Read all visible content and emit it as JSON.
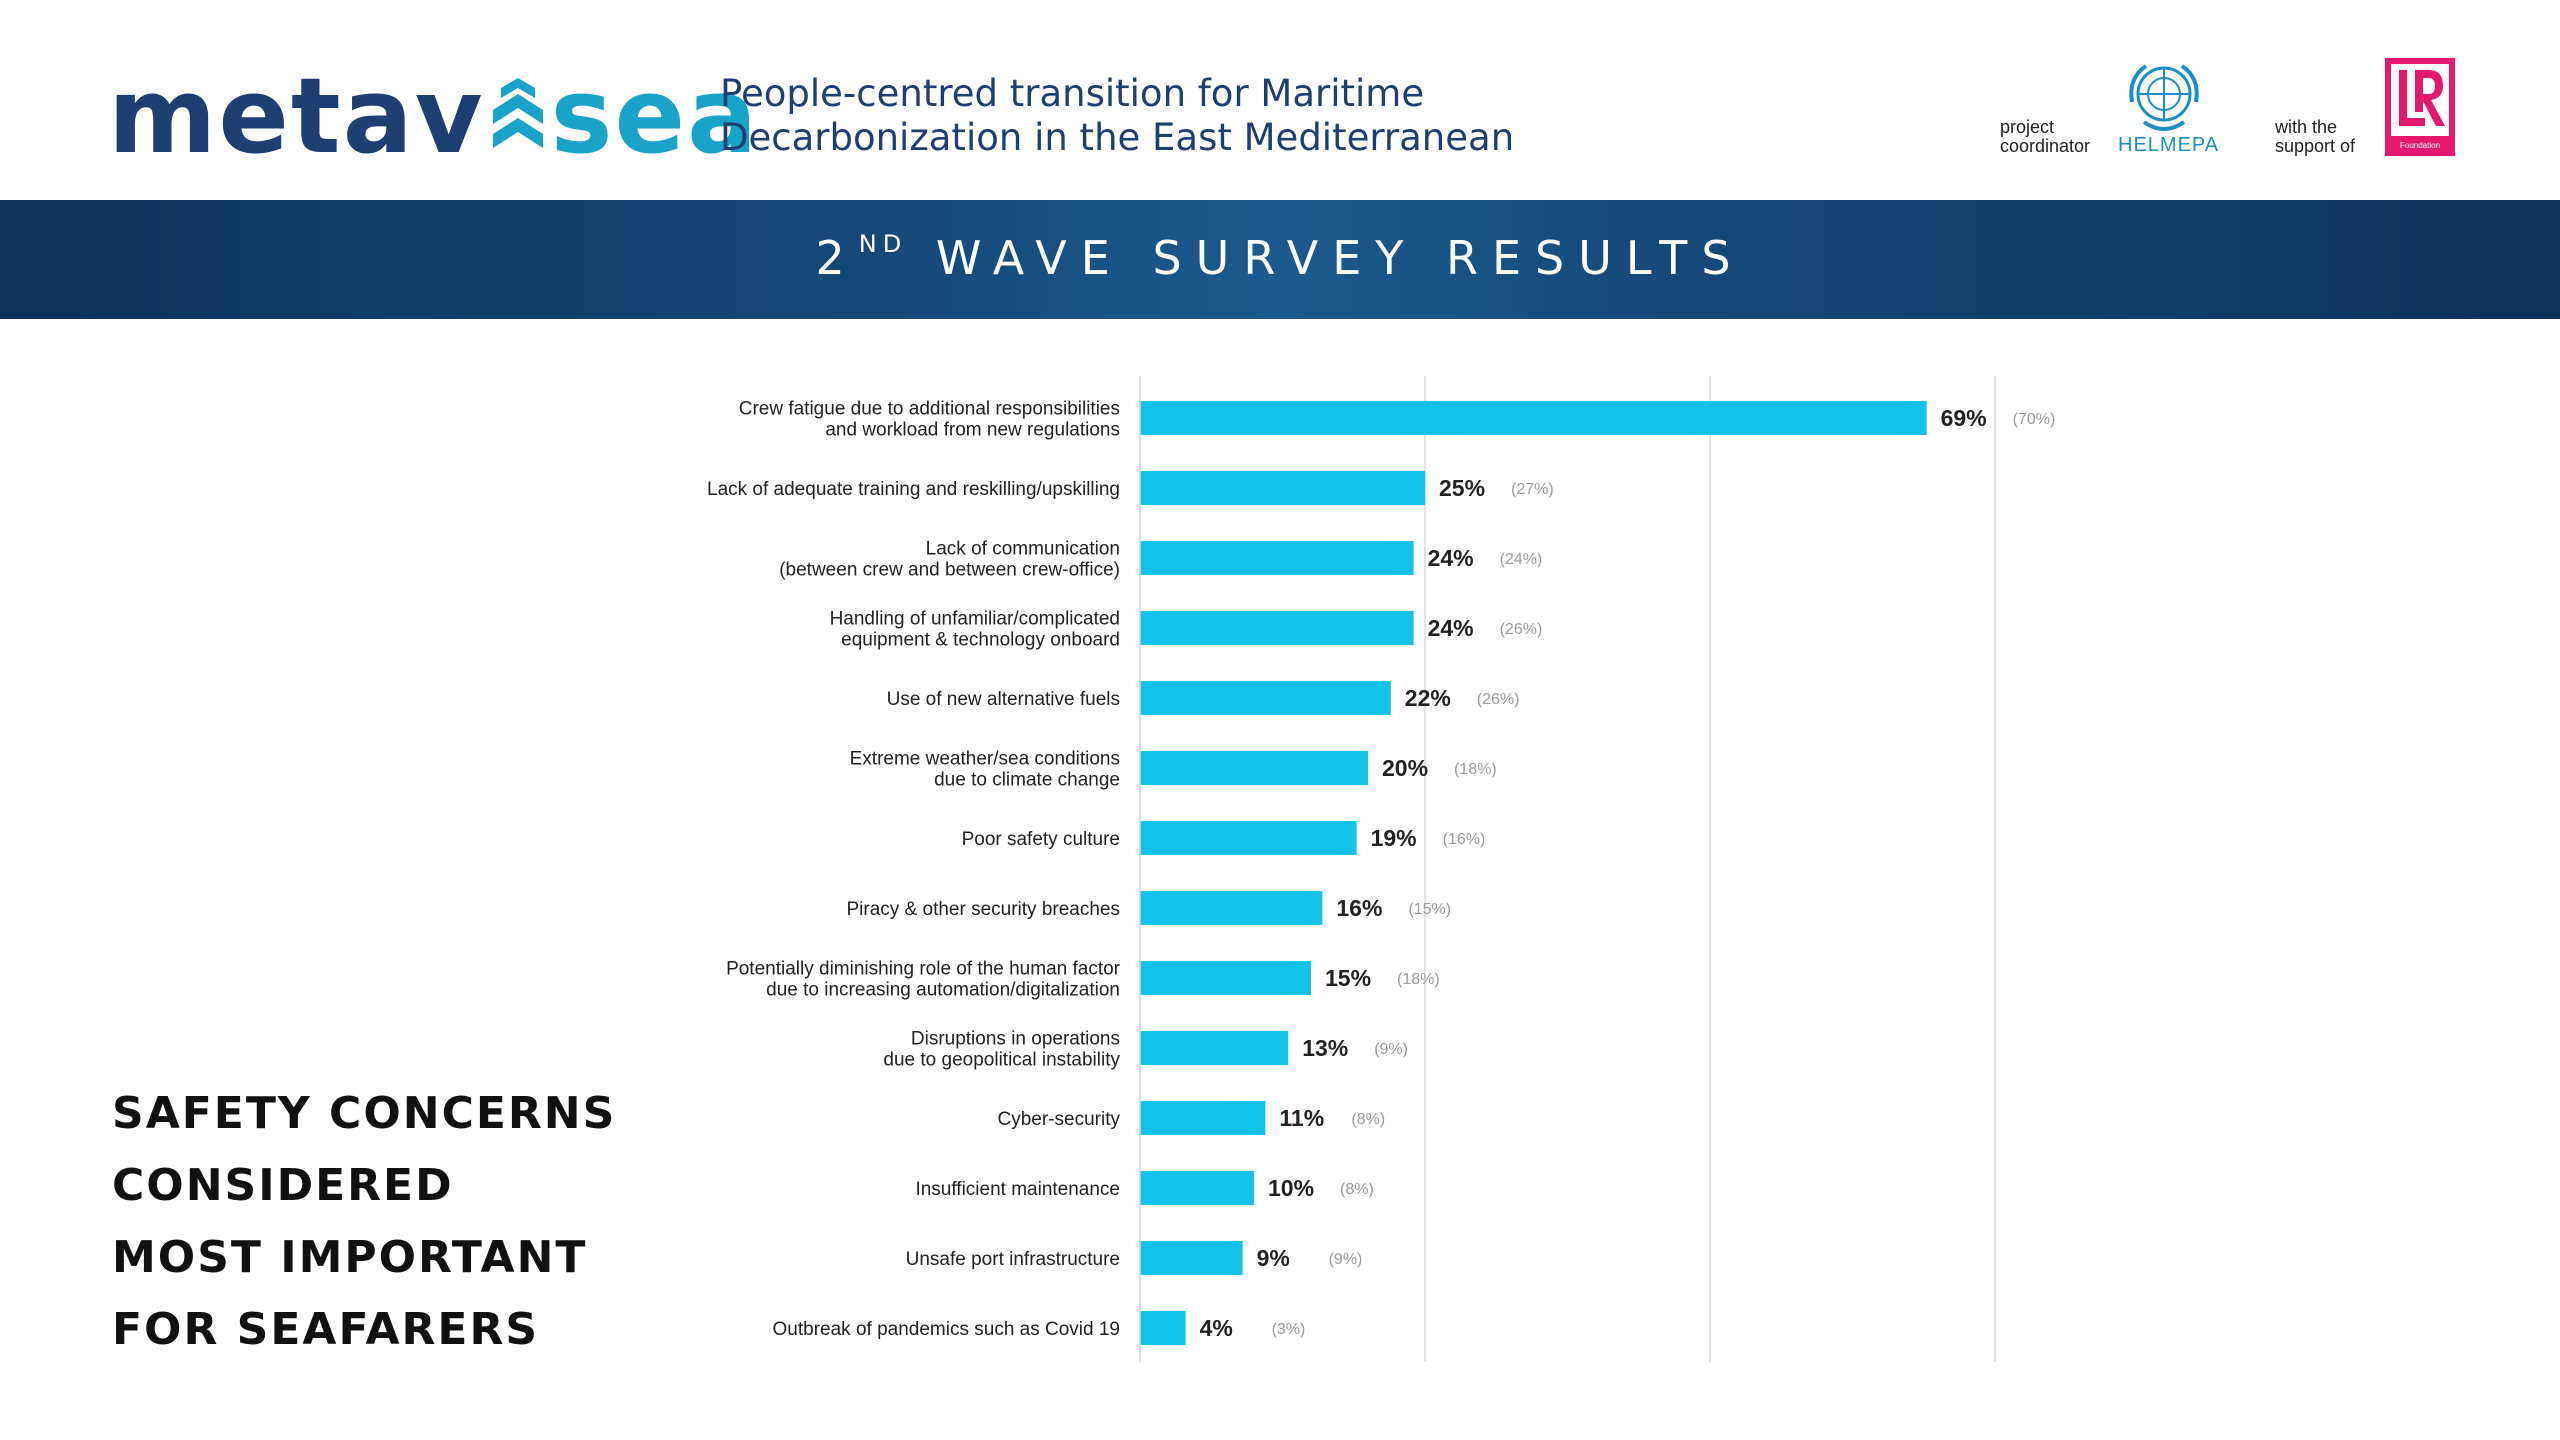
{
  "header": {
    "logo": {
      "part1": "metav",
      "part2": "sea"
    },
    "tagline_line1": "People-centred transition for Maritime",
    "tagline_line2": "Decarbonization in the East Mediterranean",
    "coordinator_line1": "project",
    "coordinator_line2": "coordinator",
    "coordinator_name": "HELMEPA",
    "support_line1": "with the",
    "support_line2": "support of",
    "lr_foundation": "Foundation"
  },
  "banner": {
    "prefix": "2",
    "superscript": "ND",
    "title": "WAVE SURVEY RESULTS"
  },
  "side_heading": [
    "SAFETY CONCERNS",
    "CONSIDERED",
    "MOST IMPORTANT",
    "FOR SEAFARERS"
  ],
  "colors": {
    "bar": "#12c3ea",
    "grid": "#d9d9d9",
    "value_text": "#222222",
    "prev_text": "#9a9a9a",
    "brand_dark": "#1f3e72",
    "brand_light": "#19a3c9"
  },
  "chart_data": {
    "type": "bar",
    "orientation": "horizontal",
    "xlim": [
      0,
      90
    ],
    "grid": true,
    "categories": [
      [
        "Crew fatigue due to additional responsibilities",
        "and workload from new regulations"
      ],
      [
        "Lack of adequate training and reskilling/upskilling"
      ],
      [
        "Lack of communication",
        "(between crew and between crew-office)"
      ],
      [
        "Handling of unfamiliar/complicated",
        "equipment & technology onboard"
      ],
      [
        "Use of new alternative fuels"
      ],
      [
        "Extreme weather/sea conditions",
        "due to climate change"
      ],
      [
        "Poor safety culture"
      ],
      [
        "Piracy & other security breaches"
      ],
      [
        "Potentially diminishing role of the human factor",
        "due to increasing automation/digitalization"
      ],
      [
        "Disruptions in operations",
        "due to geopolitical instability"
      ],
      [
        "Cyber-security"
      ],
      [
        "Insufficient maintenance"
      ],
      [
        "Unsafe port infrastructure"
      ],
      [
        "Outbreak of pandemics such as Covid 19"
      ]
    ],
    "values": [
      69,
      25,
      24,
      24,
      22,
      20,
      19,
      16,
      15,
      13,
      11,
      10,
      9,
      4
    ],
    "value_labels": [
      "69%",
      "25%",
      "24%",
      "24%",
      "22%",
      "20%",
      "19%",
      "16%",
      "15%",
      "13%",
      "11%",
      "10%",
      "9%",
      "4%"
    ],
    "previous_labels": [
      "(70%)",
      "(27%)",
      "(24%)",
      "(26%)",
      "(26%)",
      "(18%)",
      "(16%)",
      "(15%)",
      "(18%)",
      "(9%)",
      "(8%)",
      "(8%)",
      "(9%)",
      "(3%)"
    ]
  }
}
